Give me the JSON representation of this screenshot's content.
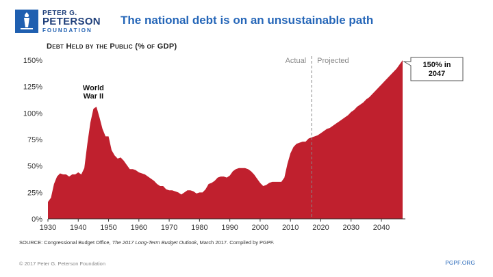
{
  "logo": {
    "line1": "PETER G.",
    "line2": "PETERSON",
    "line3": "FOUNDATION",
    "icon": "torch-logo-icon",
    "color": "#1f5fb0"
  },
  "headline": "The national debt is on an unsustainable path",
  "footer": {
    "source_prefix": "SOURCE: Congressional Budget Office, ",
    "source_title": "The 2017 Long-Term Budget Outlook",
    "source_suffix": ", March 2017. Compiled by PGPF.",
    "copyright": "© 2017 Peter G. Peterson Foundation",
    "site": "PGPF.ORG"
  },
  "chart_data": {
    "type": "area",
    "title": "Debt Held by the Public (% of GDP)",
    "xlabel": "",
    "ylabel": "",
    "xlim": [
      1930,
      2047
    ],
    "ylim": [
      0,
      150
    ],
    "x_ticks": [
      1930,
      1940,
      1950,
      1960,
      1970,
      1980,
      1990,
      2000,
      2010,
      2020,
      2030,
      2040
    ],
    "y_ticks": [
      {
        "value": 0,
        "label": "0%"
      },
      {
        "value": 25,
        "label": "25%"
      },
      {
        "value": 50,
        "label": "50%"
      },
      {
        "value": 75,
        "label": "75%"
      },
      {
        "value": 100,
        "label": "100%"
      },
      {
        "value": 125,
        "label": "125%"
      },
      {
        "value": 150,
        "label": "150%"
      }
    ],
    "grid": false,
    "fill_color": "#c0202e",
    "divider": {
      "x": 2017,
      "left_label": "Actual",
      "right_label": "Projected"
    },
    "annotations": [
      {
        "text_lines": [
          "World",
          "War II"
        ],
        "x": 1945,
        "y": 106
      },
      {
        "text_lines": [
          "150% in",
          "2047"
        ],
        "x": 2047,
        "y": 150
      }
    ],
    "series": [
      {
        "x": [
          1930,
          1931,
          1932,
          1933,
          1934,
          1935,
          1936,
          1937,
          1938,
          1939,
          1940,
          1941,
          1942,
          1943,
          1944,
          1945,
          1946,
          1947,
          1948,
          1949,
          1950,
          1951,
          1952,
          1953,
          1954,
          1955,
          1956,
          1957,
          1958,
          1959,
          1960,
          1961,
          1962,
          1963,
          1964,
          1965,
          1966,
          1967,
          1968,
          1969,
          1970,
          1971,
          1972,
          1973,
          1974,
          1975,
          1976,
          1977,
          1978,
          1979,
          1980,
          1981,
          1982,
          1983,
          1984,
          1985,
          1986,
          1987,
          1988,
          1989,
          1990,
          1991,
          1992,
          1993,
          1994,
          1995,
          1996,
          1997,
          1998,
          1999,
          2000,
          2001,
          2002,
          2003,
          2004,
          2005,
          2006,
          2007,
          2008,
          2009,
          2010,
          2011,
          2012,
          2013,
          2014,
          2015,
          2016,
          2017,
          2018,
          2019,
          2020,
          2021,
          2022,
          2023,
          2024,
          2025,
          2026,
          2027,
          2028,
          2029,
          2030,
          2031,
          2032,
          2033,
          2034,
          2035,
          2036,
          2037,
          2038,
          2039,
          2040,
          2041,
          2042,
          2043,
          2044,
          2045,
          2046,
          2047
        ],
        "values": [
          16,
          20,
          33,
          40,
          43,
          42,
          42,
          40,
          42,
          42,
          44,
          42,
          48,
          71,
          91,
          104,
          106,
          96,
          85,
          78,
          78,
          65,
          60,
          57,
          58,
          55,
          51,
          47,
          47,
          46,
          44,
          43,
          42,
          40,
          38,
          36,
          33,
          31,
          31,
          28,
          27,
          27,
          26,
          25,
          23,
          25,
          27,
          27,
          26,
          24,
          25,
          25,
          28,
          33,
          34,
          36,
          39,
          40,
          40,
          39,
          41,
          45,
          47,
          48,
          48,
          48,
          47,
          45,
          42,
          38,
          34,
          31,
          32,
          34,
          35,
          35,
          35,
          35,
          39,
          52,
          62,
          68,
          71,
          72,
          73,
          73,
          76,
          77,
          78,
          79,
          81,
          83,
          85,
          86,
          88,
          90,
          92,
          94,
          96,
          98,
          101,
          103,
          106,
          108,
          110,
          113,
          115,
          118,
          121,
          124,
          127,
          130,
          133,
          136,
          139,
          142,
          146,
          150
        ]
      }
    ]
  }
}
